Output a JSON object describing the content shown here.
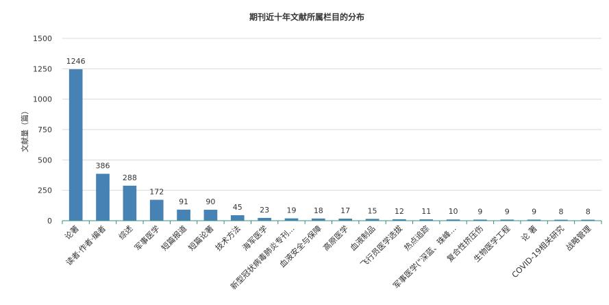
{
  "chart_data": {
    "type": "bar",
    "title": "期刊近十年文献所属栏目的分布",
    "ylabel": "文献量（篇）",
    "xlabel": "",
    "ylim": [
      0,
      1500
    ],
    "yticks": [
      0,
      250,
      500,
      750,
      1000,
      1250,
      1500
    ],
    "grid": true,
    "legend": "none",
    "bar_color": "#4682b4",
    "categories": [
      "论著",
      "读者·作者·编者",
      "综述",
      "军事医学",
      "短篇报道",
      "短篇论著",
      "技术方法",
      "海军医学",
      "新型冠状病毒肺炎专刊...",
      "血液安全与保障",
      "高原医学",
      "血液制品",
      "飞行员医学选拔",
      "热点追踪",
      "军事医学(\"深蓝、珠峰...",
      "复合性挤压伤",
      "生物医学工程",
      "论  著",
      "COVID-19相关研究",
      "战略管理"
    ],
    "values": [
      1246,
      386,
      288,
      172,
      91,
      90,
      45,
      23,
      19,
      18,
      17,
      15,
      12,
      11,
      10,
      9,
      9,
      9,
      8,
      8
    ]
  }
}
